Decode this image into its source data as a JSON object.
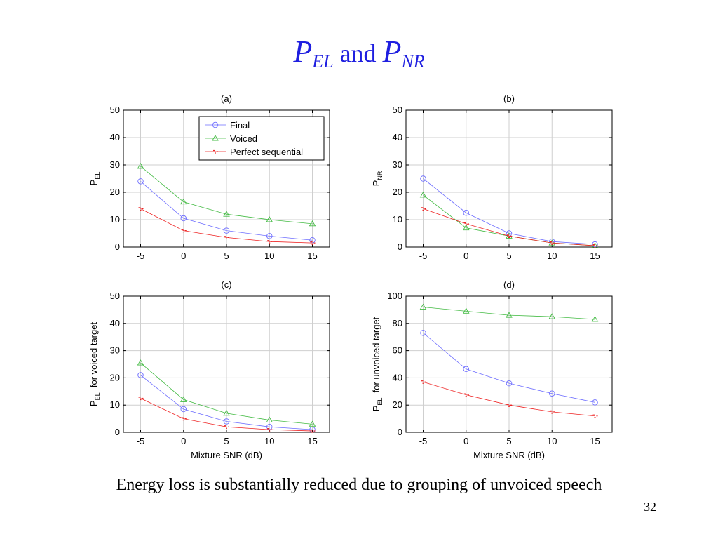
{
  "slide": {
    "title_p1": "P",
    "title_sub1": "EL",
    "title_and": " and ",
    "title_p2": "P",
    "title_sub2": "NR",
    "caption": "Energy loss is substantially reduced due to grouping of unvoiced speech",
    "page_number": "32"
  },
  "colors": {
    "Final": "#6d6dff",
    "Voiced": "#44bb44",
    "Perfect sequential": "#ee2222",
    "title": "#1f1fe0"
  },
  "legend": {
    "placement": "top-right of panel (a)",
    "entries": [
      "Final",
      "Voiced",
      "Perfect sequential"
    ]
  },
  "chart_data": [
    {
      "type": "line",
      "title": "(a)",
      "xlabel": "",
      "ylabel_main": "P",
      "ylabel_sub": "EL",
      "ylabel_rest": "",
      "x": [
        -5,
        0,
        5,
        10,
        15
      ],
      "xlim": [
        -7,
        17
      ],
      "ylim": [
        0,
        50
      ],
      "yticks": [
        0,
        10,
        20,
        30,
        40,
        50
      ],
      "grid": true,
      "series": [
        {
          "name": "Final",
          "values": [
            24,
            10.5,
            6,
            4,
            2.5
          ]
        },
        {
          "name": "Voiced",
          "values": [
            29.5,
            16.5,
            12,
            10,
            8.5
          ]
        },
        {
          "name": "Perfect sequential",
          "values": [
            14,
            6,
            3.5,
            2,
            1.5
          ]
        }
      ]
    },
    {
      "type": "line",
      "title": "(b)",
      "xlabel": "",
      "ylabel_main": "P",
      "ylabel_sub": "NR",
      "ylabel_rest": "",
      "x": [
        -5,
        0,
        5,
        10,
        15
      ],
      "xlim": [
        -7,
        17
      ],
      "ylim": [
        0,
        50
      ],
      "yticks": [
        0,
        10,
        20,
        30,
        40,
        50
      ],
      "grid": true,
      "series": [
        {
          "name": "Final",
          "values": [
            25,
            12.5,
            5,
            2,
            1
          ]
        },
        {
          "name": "Voiced",
          "values": [
            19,
            7,
            4,
            1.5,
            0.5
          ]
        },
        {
          "name": "Perfect sequential",
          "values": [
            14,
            8.5,
            4,
            1.5,
            0.5
          ]
        }
      ]
    },
    {
      "type": "line",
      "title": "(c)",
      "xlabel": "Mixture SNR (dB)",
      "ylabel_main": "P",
      "ylabel_sub": "EL",
      "ylabel_rest": " for voiced target",
      "x": [
        -5,
        0,
        5,
        10,
        15
      ],
      "xlim": [
        -7,
        17
      ],
      "ylim": [
        0,
        50
      ],
      "yticks": [
        0,
        10,
        20,
        30,
        40,
        50
      ],
      "grid": true,
      "series": [
        {
          "name": "Final",
          "values": [
            21,
            8.5,
            4,
            2,
            1
          ]
        },
        {
          "name": "Voiced",
          "values": [
            25.5,
            12,
            7,
            4.5,
            3
          ]
        },
        {
          "name": "Perfect sequential",
          "values": [
            12.5,
            5,
            2,
            1,
            0.5
          ]
        }
      ]
    },
    {
      "type": "line",
      "title": "(d)",
      "xlabel": "Mixture SNR (dB)",
      "ylabel_main": "P",
      "ylabel_sub": "EL",
      "ylabel_rest": " for unvoiced target",
      "x": [
        -5,
        0,
        5,
        10,
        15
      ],
      "xlim": [
        -7,
        17
      ],
      "ylim": [
        0,
        100
      ],
      "yticks": [
        0,
        20,
        40,
        60,
        80,
        100
      ],
      "grid": true,
      "series": [
        {
          "name": "Final",
          "values": [
            73,
            46.5,
            36,
            28.5,
            22
          ]
        },
        {
          "name": "Voiced",
          "values": [
            92,
            89,
            86,
            85,
            83
          ]
        },
        {
          "name": "Perfect sequential",
          "values": [
            37,
            27.5,
            20,
            15,
            12
          ]
        }
      ]
    }
  ]
}
